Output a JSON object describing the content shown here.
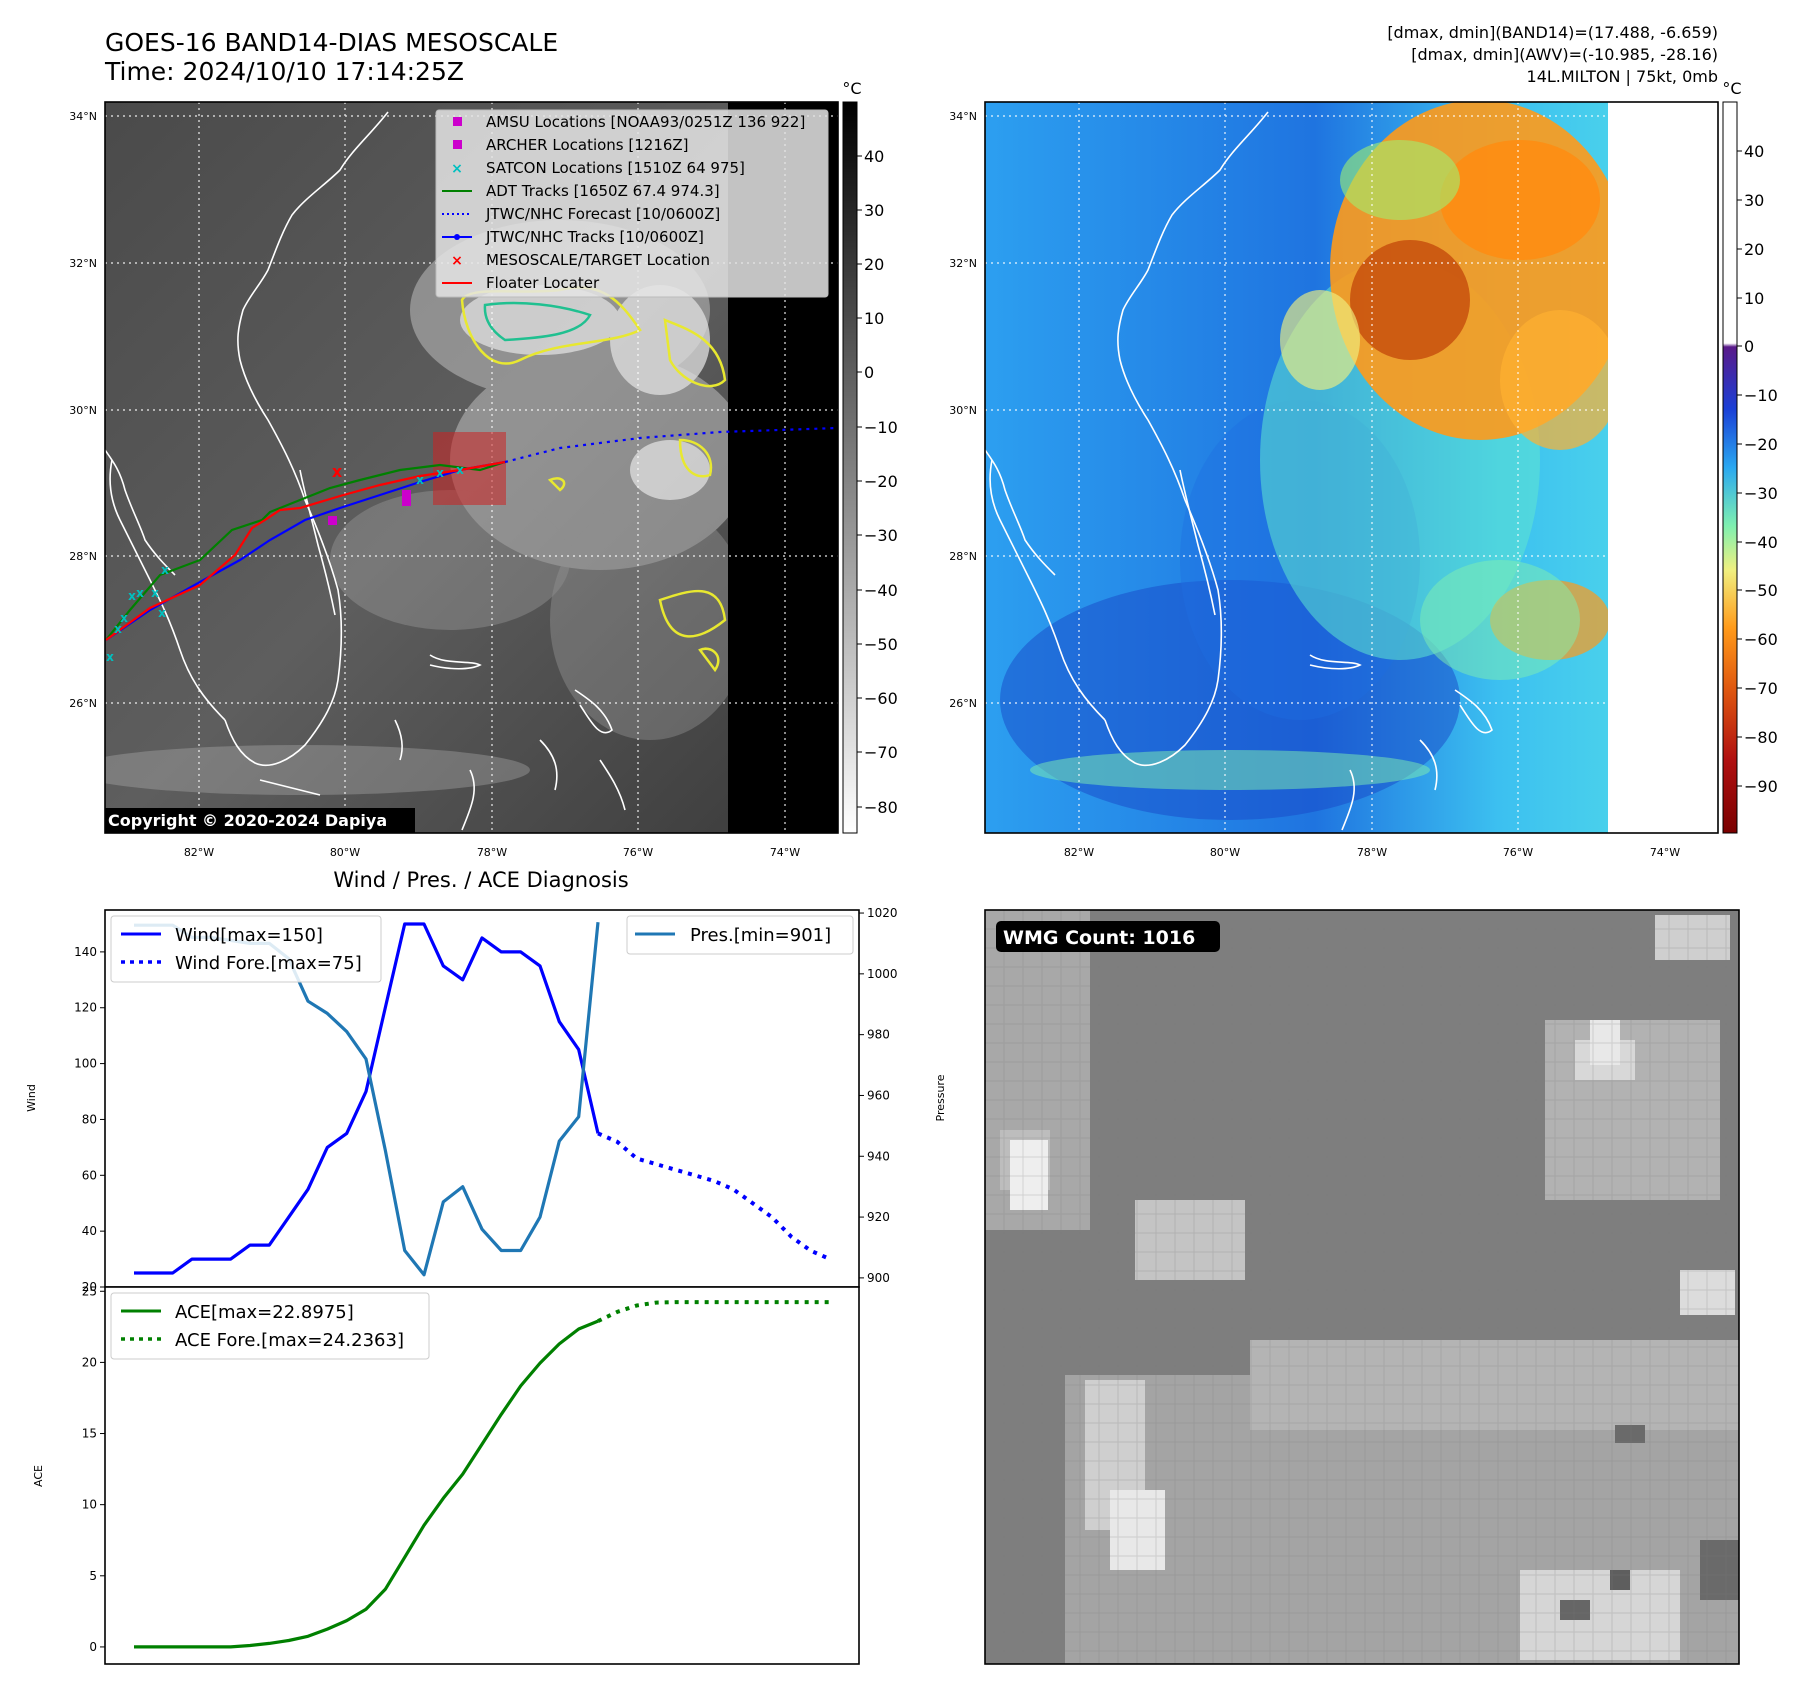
{
  "header": {
    "title": "GOES-16 BAND14-DIAS MESOSCALE",
    "time": "Time: 2024/10/10 17:14:25Z",
    "stats_band14": "[dmax, dmin](BAND14)=(17.488, -6.659)",
    "stats_awv": "[dmax, dmin](AWV)=(-10.985, -28.16)",
    "storm": "14L.MILTON | 75kt, 0mb"
  },
  "map_left": {
    "lat_labels": [
      "34°N",
      "32°N",
      "30°N",
      "28°N",
      "26°N"
    ],
    "lon_labels": [
      "82°W",
      "80°W",
      "78°W",
      "76°W",
      "74°W"
    ],
    "copyright": "Copyright © 2020-2024 Dapiya",
    "colorbar": {
      "unit": "°C",
      "ticks": [
        "40",
        "30",
        "20",
        "10",
        "0",
        "−10",
        "−20",
        "−30",
        "−40",
        "−50",
        "−60",
        "−70",
        "−80"
      ]
    },
    "legend": [
      {
        "label": "AMSU Locations [NOAA93/0251Z 136 922]",
        "marker": "square",
        "color": "#cc00cc"
      },
      {
        "label": "ARCHER Locations [1216Z]",
        "marker": "square",
        "color": "#cc00cc"
      },
      {
        "label": "SATCON Locations [1510Z 64 975]",
        "marker": "x",
        "color": "#00c0c0"
      },
      {
        "label": "ADT Tracks [1650Z 67.4 974.3]",
        "marker": "line",
        "color": "#008000"
      },
      {
        "label": "JTWC/NHC Forecast [10/0600Z]",
        "marker": "dotted",
        "color": "#0000ff"
      },
      {
        "label": "JTWC/NHC Tracks [10/0600Z]",
        "marker": "line-dot",
        "color": "#0000ff"
      },
      {
        "label": "MESOSCALE/TARGET Location",
        "marker": "x",
        "color": "#ff0000"
      },
      {
        "label": "Floater Locater",
        "marker": "line",
        "color": "#ff0000"
      }
    ]
  },
  "map_right": {
    "lat_labels": [
      "34°N",
      "32°N",
      "30°N",
      "28°N",
      "26°N"
    ],
    "lon_labels": [
      "82°W",
      "80°W",
      "78°W",
      "76°W",
      "74°W"
    ],
    "colorbar": {
      "unit": "°C",
      "ticks": [
        "40",
        "30",
        "20",
        "10",
        "0",
        "−10",
        "−20",
        "−30",
        "−40",
        "−50",
        "−60",
        "−70",
        "−80",
        "−90"
      ]
    }
  },
  "wmg": {
    "label": "WMG Count: 1016"
  },
  "chart_data": [
    {
      "type": "line",
      "title": "Wind / Pres. / ACE Diagnosis",
      "ylabel": "Wind",
      "ylabel_right": "Pressure",
      "ylim": [
        20,
        155
      ],
      "yticks": [
        20,
        40,
        60,
        80,
        100,
        120,
        140
      ],
      "y2lim": [
        897,
        1021
      ],
      "y2ticks": [
        900,
        920,
        940,
        960,
        980,
        1000,
        1020
      ],
      "xlim": [
        -1.5,
        37.5
      ],
      "series": [
        {
          "name": "Wind[max=150]",
          "axis": "left",
          "color": "#0000ff",
          "style": "solid",
          "x": [
            0,
            1,
            2,
            3,
            4,
            5,
            6,
            7,
            8,
            9,
            10,
            11,
            12,
            13,
            14,
            15,
            16,
            17,
            18,
            19,
            20,
            21,
            22,
            23,
            24
          ],
          "values": [
            25,
            25,
            25,
            30,
            30,
            30,
            35,
            35,
            45,
            55,
            70,
            75,
            90,
            120,
            150,
            150,
            135,
            130,
            145,
            140,
            140,
            135,
            115,
            105,
            75
          ]
        },
        {
          "name": "Wind Fore.[max=75]",
          "axis": "left",
          "color": "#0000ff",
          "style": "dotted",
          "x": [
            24,
            25,
            26,
            27,
            28,
            29,
            30,
            31,
            32,
            33,
            34,
            35,
            36
          ],
          "values": [
            75,
            72,
            66,
            64,
            62,
            60,
            58,
            55,
            50,
            45,
            38,
            33,
            30
          ]
        },
        {
          "name": "Pres.[min=901]",
          "axis": "right",
          "color": "#1f77b4",
          "style": "solid",
          "x": [
            0,
            1,
            2,
            3,
            4,
            5,
            6,
            7,
            8,
            9,
            10,
            11,
            12,
            13,
            14,
            15,
            16,
            17,
            18,
            19,
            20,
            21,
            22,
            23,
            24
          ],
          "values": [
            1016,
            1016,
            1016,
            1012,
            1012,
            1011,
            1010,
            1010,
            1005,
            991,
            987,
            981,
            972,
            942,
            909,
            901,
            925,
            930,
            916,
            909,
            909,
            920,
            945,
            953,
            1017
          ]
        }
      ]
    },
    {
      "type": "line",
      "ylabel": "ACE",
      "ylim": [
        -1.2,
        25.3
      ],
      "yticks": [
        0,
        5,
        10,
        15,
        20,
        25
      ],
      "xlim": [
        -1.5,
        37.5
      ],
      "series": [
        {
          "name": "ACE[max=22.8975]",
          "color": "#008000",
          "style": "solid",
          "x": [
            0,
            1,
            2,
            3,
            4,
            5,
            6,
            7,
            8,
            9,
            10,
            11,
            12,
            13,
            14,
            15,
            16,
            17,
            18,
            19,
            20,
            21,
            22,
            23,
            24
          ],
          "values": [
            0,
            0,
            0,
            0,
            0,
            0,
            0.1,
            0.25,
            0.45,
            0.75,
            1.25,
            1.85,
            2.65,
            4.05,
            6.3,
            8.55,
            10.45,
            12.15,
            14.25,
            16.35,
            18.35,
            19.95,
            21.3,
            22.35,
            22.9
          ]
        },
        {
          "name": "ACE Fore.[max=24.2363]",
          "color": "#008000",
          "style": "dotted",
          "x": [
            24,
            25,
            26,
            27,
            28,
            29,
            30,
            31,
            32,
            33,
            34,
            35,
            36
          ],
          "values": [
            22.9,
            23.55,
            24.0,
            24.2,
            24.24,
            24.24,
            24.24,
            24.24,
            24.24,
            24.24,
            24.24,
            24.24,
            24.24
          ]
        }
      ]
    }
  ]
}
